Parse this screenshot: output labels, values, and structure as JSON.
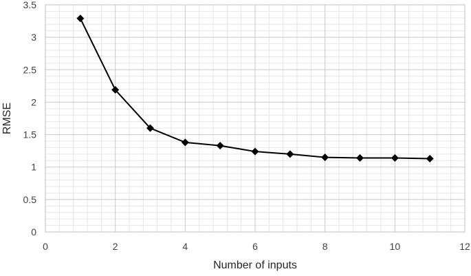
{
  "chart_data": {
    "type": "line",
    "xlabel": "Number of inputs",
    "ylabel": "RMSE",
    "xlim": [
      0,
      12
    ],
    "ylim": [
      0,
      3.5
    ],
    "x_major_step": 2,
    "x_minor_step": 0.4,
    "y_major_step": 0.5,
    "y_minor_step": 0.1,
    "x_tick_labels": [
      "0",
      "2",
      "4",
      "6",
      "8",
      "10",
      "12"
    ],
    "y_tick_labels": [
      "0",
      "0.5",
      "1",
      "1.5",
      "2",
      "2.5",
      "3",
      "3.5"
    ],
    "grid": true,
    "legend": "none",
    "marker": "diamond",
    "line_color": "#000000",
    "series": [
      {
        "x": [
          1,
          2,
          3,
          4,
          5,
          6,
          7,
          8,
          9,
          10,
          11
        ],
        "values": [
          3.29,
          2.19,
          1.6,
          1.38,
          1.33,
          1.24,
          1.2,
          1.15,
          1.14,
          1.14,
          1.13
        ]
      }
    ]
  }
}
